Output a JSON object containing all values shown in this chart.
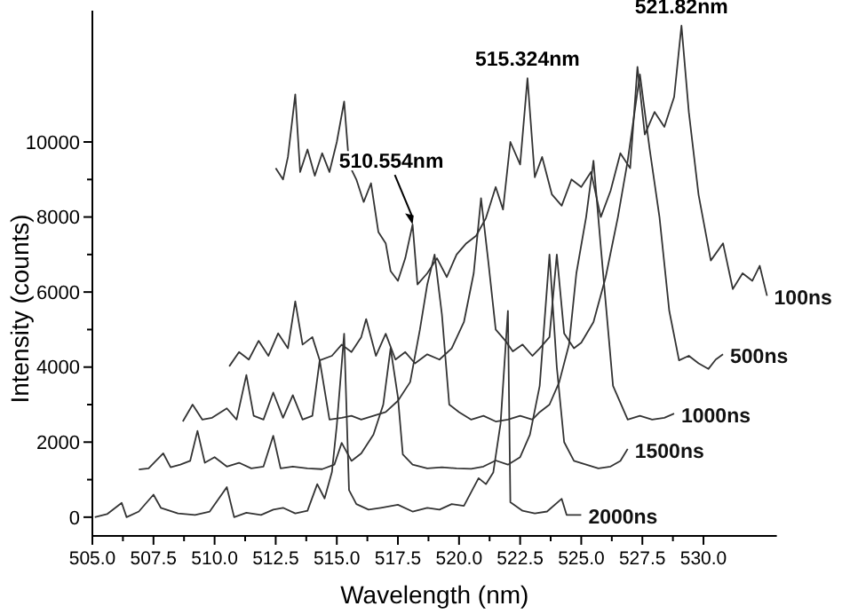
{
  "chart_data": {
    "type": "line",
    "xlabel": "Wavelength (nm)",
    "ylabel": "Intensity (counts)",
    "xlim": [
      505,
      533
    ],
    "ylim": [
      -500,
      13500
    ],
    "xticks": [
      {
        "value": 505,
        "label": "505.0"
      },
      {
        "value": 506.25,
        "label": null
      },
      {
        "value": 507.5,
        "label": "507.5"
      },
      {
        "value": 508.75,
        "label": null
      },
      {
        "value": 510,
        "label": "510.0"
      },
      {
        "value": 511.25,
        "label": null
      },
      {
        "value": 512.5,
        "label": "512.5"
      },
      {
        "value": 513.75,
        "label": null
      },
      {
        "value": 515,
        "label": "515.0"
      },
      {
        "value": 516.25,
        "label": null
      },
      {
        "value": 517.5,
        "label": "517.5"
      },
      {
        "value": 518.75,
        "label": null
      },
      {
        "value": 520,
        "label": "520.0"
      },
      {
        "value": 521.25,
        "label": null
      },
      {
        "value": 522.5,
        "label": "522.5"
      },
      {
        "value": 523.75,
        "label": null
      },
      {
        "value": 525,
        "label": "525.0"
      },
      {
        "value": 526.25,
        "label": null
      },
      {
        "value": 527.5,
        "label": "527.5"
      },
      {
        "value": 528.75,
        "label": null
      },
      {
        "value": 530,
        "label": "530.0"
      }
    ],
    "yticks": [
      0,
      {
        "value": 1000,
        "label": null
      },
      2000,
      {
        "value": 3000,
        "label": null
      },
      4000,
      {
        "value": 5000,
        "label": null
      },
      6000,
      {
        "value": 7000,
        "label": null
      },
      8000,
      {
        "value": 9000,
        "label": null
      },
      10000
    ],
    "grid": false,
    "marker": "none",
    "line_style": "solid",
    "annotations": [
      {
        "text": "510.554nm",
        "x": 518.1,
        "y": 7800
      },
      {
        "text": "515.324nm",
        "x": 522.8,
        "y": 11700
      },
      {
        "text": "521.82nm",
        "x": 529.1,
        "y": 13100
      }
    ],
    "series": [
      {
        "name": "100ns",
        "color": "#333333",
        "x": [
          512.5,
          512.8,
          513.0,
          513.3,
          513.5,
          513.8,
          514.1,
          514.4,
          514.7,
          515.0,
          515.3,
          515.5,
          515.8,
          516.1,
          516.4,
          516.7,
          517.0,
          517.2,
          517.5,
          517.8,
          518.1,
          518.3,
          518.7,
          519.1,
          519.5,
          519.9,
          520.3,
          520.7,
          521.1,
          521.5,
          521.8,
          522.1,
          522.5,
          522.8,
          523.1,
          523.4,
          523.8,
          524.2,
          524.6,
          525.0,
          525.4,
          525.8,
          526.2,
          526.6,
          527.0,
          527.3,
          527.6,
          528.0,
          528.4,
          528.8,
          529.1,
          529.4,
          529.8,
          530.3,
          530.8,
          531.2,
          531.6,
          532.0,
          532.3,
          532.6
        ],
        "values": [
          9300,
          9000,
          9600,
          11270,
          9200,
          9800,
          9100,
          9700,
          9200,
          10000,
          11080,
          9400,
          9000,
          8400,
          8900,
          7600,
          7300,
          6560,
          6300,
          6900,
          7800,
          6200,
          6500,
          6900,
          6400,
          7000,
          7300,
          7500,
          7970,
          8800,
          8200,
          10000,
          9400,
          11700,
          9060,
          9600,
          8600,
          8300,
          9000,
          8800,
          9200,
          8000,
          8700,
          9700,
          9300,
          12000,
          10200,
          10800,
          10400,
          11200,
          13100,
          10800,
          8590,
          6840,
          7300,
          6080,
          6500,
          6300,
          6700,
          5900
        ]
      },
      {
        "name": "500ns",
        "color": "#333333",
        "x": [
          510.6,
          511.0,
          511.4,
          511.8,
          512.2,
          512.6,
          513.0,
          513.3,
          513.6,
          514.0,
          514.3,
          514.8,
          515.2,
          515.6,
          516.0,
          516.2,
          516.6,
          517.0,
          517.4,
          517.8,
          518.2,
          518.7,
          519.2,
          519.7,
          520.2,
          520.6,
          520.9,
          521.2,
          521.5,
          521.9,
          522.2,
          522.6,
          523.0,
          523.3,
          523.7,
          524.0,
          524.3,
          524.7,
          525.0,
          525.5,
          526.0,
          526.5,
          526.9,
          527.4,
          527.8,
          528.2,
          528.6,
          529.0,
          529.4,
          529.8,
          530.2,
          530.5,
          530.8
        ],
        "values": [
          4020,
          4400,
          4200,
          4700,
          4300,
          4900,
          4500,
          5750,
          4600,
          4800,
          4180,
          4300,
          4600,
          4400,
          4800,
          5280,
          4300,
          4890,
          4200,
          4400,
          4100,
          4340,
          4200,
          4500,
          5200,
          6500,
          8500,
          6800,
          5000,
          4700,
          4420,
          4600,
          4300,
          4500,
          4800,
          7000,
          4900,
          4500,
          4650,
          5200,
          6400,
          8000,
          9500,
          11800,
          9800,
          8000,
          5500,
          4180,
          4300,
          4100,
          3950,
          4200,
          4340
        ]
      },
      {
        "name": "1000ns",
        "color": "#333333",
        "x": [
          508.7,
          509.1,
          509.5,
          509.9,
          510.5,
          510.9,
          511.3,
          511.6,
          512.0,
          512.4,
          512.8,
          513.2,
          513.6,
          514.0,
          514.3,
          514.7,
          515.2,
          515.6,
          516.0,
          516.5,
          517.0,
          517.5,
          518.0,
          518.4,
          518.7,
          519.0,
          519.3,
          519.6,
          520.0,
          520.5,
          521.0,
          521.5,
          522.0,
          522.5,
          523.0,
          523.3,
          523.7,
          524.1,
          524.5,
          524.8,
          525.2,
          525.5,
          525.8,
          526.3,
          526.9,
          527.4,
          527.9,
          528.4,
          528.8
        ],
        "values": [
          2550,
          3000,
          2600,
          2650,
          2900,
          2600,
          3790,
          2700,
          2600,
          3320,
          2650,
          3250,
          2600,
          2700,
          4180,
          2600,
          2650,
          2700,
          2600,
          2700,
          2800,
          3100,
          3600,
          5000,
          6200,
          7000,
          5400,
          3000,
          2800,
          2600,
          2700,
          2550,
          2600,
          2700,
          2600,
          2800,
          3000,
          3600,
          4600,
          6500,
          8000,
          9500,
          7200,
          3500,
          2600,
          2700,
          2600,
          2650,
          2760
        ]
      },
      {
        "name": "1500ns",
        "color": "#333333",
        "x": [
          506.9,
          507.3,
          507.9,
          508.2,
          508.6,
          509.0,
          509.3,
          509.6,
          510.0,
          510.5,
          511.0,
          511.5,
          512.0,
          512.4,
          512.7,
          513.2,
          513.8,
          514.4,
          514.9,
          515.2,
          515.6,
          516.0,
          516.5,
          516.9,
          517.2,
          517.5,
          517.7,
          518.1,
          518.7,
          519.3,
          519.9,
          520.5,
          521.0,
          521.5,
          522.0,
          522.5,
          522.9,
          523.3,
          523.7,
          524.0,
          524.3,
          524.7,
          525.2,
          525.7,
          526.2,
          526.6,
          526.9
        ],
        "values": [
          1270,
          1300,
          1700,
          1330,
          1400,
          1500,
          2300,
          1450,
          1600,
          1350,
          1450,
          1300,
          1350,
          2170,
          1300,
          1350,
          1300,
          1280,
          1400,
          1980,
          1500,
          1700,
          2200,
          3000,
          4500,
          3200,
          1670,
          1400,
          1300,
          1330,
          1300,
          1290,
          1350,
          1510,
          1400,
          1600,
          2200,
          3500,
          7000,
          4000,
          2000,
          1500,
          1400,
          1300,
          1350,
          1500,
          1820
        ]
      },
      {
        "name": "2000ns",
        "color": "#333333",
        "x": [
          505.1,
          505.6,
          506.2,
          506.4,
          506.9,
          507.5,
          507.8,
          508.5,
          509.2,
          509.8,
          510.5,
          510.8,
          511.3,
          511.9,
          512.4,
          512.8,
          513.3,
          513.8,
          514.2,
          514.5,
          514.8,
          515.0,
          515.3,
          515.5,
          515.8,
          516.3,
          516.8,
          517.5,
          518.1,
          518.7,
          519.2,
          519.7,
          520.2,
          520.8,
          521.1,
          521.4,
          521.7,
          522.0,
          522.1,
          522.6,
          523.1,
          523.6,
          524.2,
          524.4,
          525.0
        ],
        "values": [
          0,
          80,
          380,
          0,
          150,
          600,
          250,
          100,
          60,
          150,
          800,
          0,
          120,
          60,
          200,
          250,
          100,
          170,
          880,
          500,
          1200,
          2450,
          4890,
          720,
          350,
          200,
          250,
          330,
          150,
          250,
          200,
          350,
          300,
          1040,
          880,
          1190,
          2500,
          5500,
          400,
          170,
          100,
          150,
          490,
          60,
          60
        ]
      }
    ]
  }
}
